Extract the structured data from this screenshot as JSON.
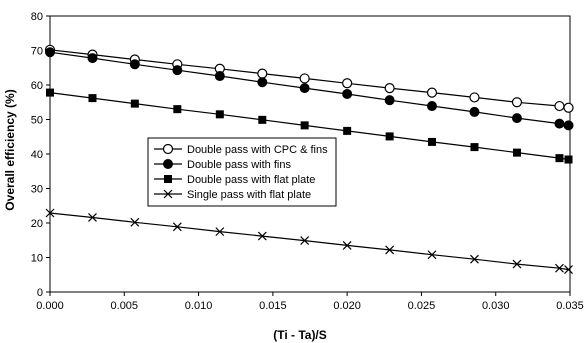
{
  "chart_data": {
    "type": "line",
    "title": "",
    "xlabel": "(Ti - Ta)/S",
    "ylabel": "Overall efficiency (%)",
    "xlim": [
      0,
      0.035
    ],
    "ylim": [
      0,
      80
    ],
    "x_ticks": [
      "0.000",
      "0.005",
      "0.010",
      "0.015",
      "0.020",
      "0.025",
      "0.030",
      "0.035"
    ],
    "y_ticks": [
      "0",
      "10",
      "20",
      "30",
      "40",
      "50",
      "60",
      "70",
      "80"
    ],
    "x": [
      0.0,
      0.00286,
      0.00571,
      0.00857,
      0.01143,
      0.01429,
      0.01714,
      0.02,
      0.02286,
      0.02571,
      0.02857,
      0.03143,
      0.03429,
      0.0349
    ],
    "grid": false,
    "legend_position": "center-left",
    "series": [
      {
        "name": "Double pass with CPC & fins",
        "marker": "open-circle",
        "color": "#000000",
        "values": [
          70.2,
          68.8,
          67.4,
          66.0,
          64.7,
          63.3,
          61.9,
          60.5,
          59.1,
          57.8,
          56.4,
          55.0,
          53.9,
          53.4
        ]
      },
      {
        "name": "Double pass with fins",
        "marker": "filled-circle",
        "color": "#000000",
        "values": [
          69.5,
          67.8,
          66.0,
          64.3,
          62.6,
          60.8,
          59.1,
          57.4,
          55.6,
          53.9,
          52.2,
          50.4,
          48.8,
          48.3
        ]
      },
      {
        "name": "Double pass with flat plate",
        "marker": "filled-square",
        "color": "#000000",
        "values": [
          57.8,
          56.2,
          54.6,
          53.0,
          51.5,
          49.9,
          48.3,
          46.7,
          45.1,
          43.5,
          42.0,
          40.4,
          38.8,
          38.4
        ]
      },
      {
        "name": "Single pass with flat plate",
        "marker": "x",
        "color": "#000000",
        "values": [
          22.9,
          21.6,
          20.2,
          18.9,
          17.5,
          16.2,
          14.9,
          13.5,
          12.2,
          10.8,
          9.5,
          8.1,
          6.9,
          6.5
        ]
      }
    ]
  }
}
